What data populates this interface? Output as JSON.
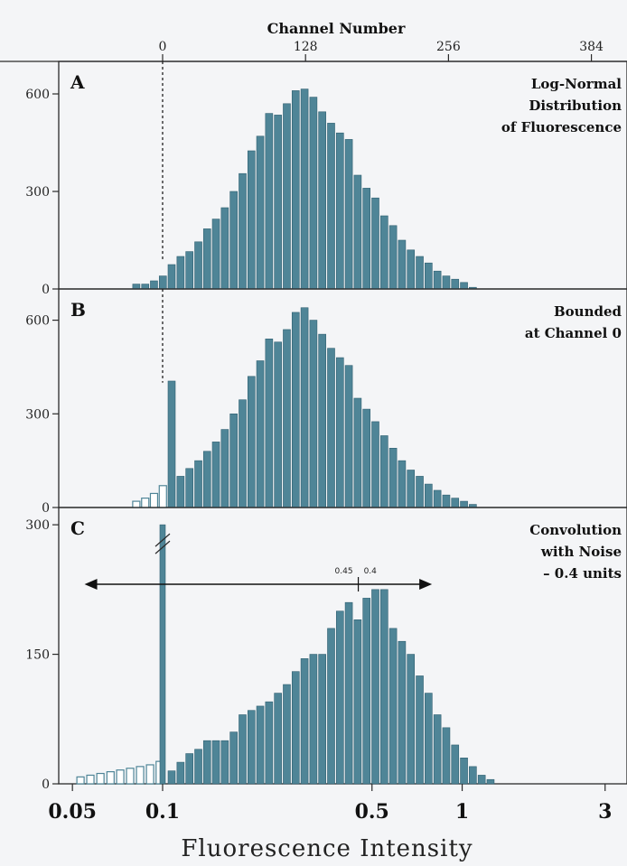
{
  "top_axis": {
    "title": "Channel Number",
    "ticks": [
      {
        "channel": 0,
        "x": 0.1
      },
      {
        "channel": 128,
        "x": 0.3
      },
      {
        "channel": 256,
        "x": 0.9
      },
      {
        "channel": 384,
        "x": 2.7
      }
    ]
  },
  "bottom_axis": {
    "title": "Fluorescence Intensity",
    "ticks": [
      {
        "value": 0.05,
        "label": "0.05"
      },
      {
        "value": 0.1,
        "label": "0.1"
      },
      {
        "value": 0.5,
        "label": "0.5"
      },
      {
        "value": 1,
        "label": "1"
      },
      {
        "value": 3,
        "label": "3"
      }
    ]
  },
  "colors": {
    "bar": "#4f8597",
    "bar_edge": "#2f5f70",
    "hollow_edge": "#4f8597"
  },
  "chart_data": [
    {
      "type": "bar",
      "panel": "A",
      "annotation": [
        "Log-Normal",
        "Distribution",
        "of Fluorescence"
      ],
      "xscale": "log",
      "ylim": [
        0,
        700
      ],
      "yticks": [
        0,
        300,
        600
      ],
      "hollow_bars": [],
      "x": [
        0.0817,
        0.0875,
        0.0936,
        0.1002,
        0.1072,
        0.1148,
        0.1229,
        0.1316,
        0.1408,
        0.1507,
        0.1613,
        0.1727,
        0.1849,
        0.1979,
        0.2118,
        0.2267,
        0.2427,
        0.2598,
        0.2781,
        0.2977,
        0.3187,
        0.3411,
        0.3652,
        0.3909,
        0.4184,
        0.4479,
        0.4795,
        0.5132,
        0.5494,
        0.5881,
        0.6295,
        0.6739,
        0.7214,
        0.7722,
        0.8266,
        0.8849,
        0.9472,
        1.014,
        1.0854
      ],
      "values": [
        15,
        15,
        25,
        40,
        75,
        100,
        115,
        145,
        185,
        215,
        250,
        300,
        355,
        425,
        470,
        540,
        535,
        570,
        610,
        615,
        590,
        545,
        510,
        480,
        460,
        350,
        310,
        280,
        225,
        195,
        150,
        120,
        100,
        80,
        55,
        40,
        30,
        20,
        5
      ]
    },
    {
      "type": "bar",
      "panel": "B",
      "annotation": [
        "Bounded",
        "at Channel 0"
      ],
      "xscale": "log",
      "ylim": [
        0,
        700
      ],
      "yticks": [
        0,
        300,
        600
      ],
      "hollow_bars": [
        {
          "x": 0.0817,
          "value": 20
        },
        {
          "x": 0.0875,
          "value": 30
        },
        {
          "x": 0.0936,
          "value": 45
        },
        {
          "x": 0.1002,
          "value": 70
        }
      ],
      "x": [
        0.1072,
        0.1148,
        0.1229,
        0.1316,
        0.1408,
        0.1507,
        0.1613,
        0.1727,
        0.1849,
        0.1979,
        0.2118,
        0.2267,
        0.2427,
        0.2598,
        0.2781,
        0.2977,
        0.3187,
        0.3411,
        0.3652,
        0.3909,
        0.4184,
        0.4479,
        0.4795,
        0.5132,
        0.5494,
        0.5881,
        0.6295,
        0.6739,
        0.7214,
        0.7722,
        0.8266,
        0.8849,
        0.9472,
        1.014,
        1.0854
      ],
      "values": [
        405,
        100,
        125,
        150,
        180,
        210,
        250,
        300,
        345,
        420,
        470,
        540,
        530,
        570,
        625,
        640,
        600,
        555,
        510,
        480,
        455,
        350,
        315,
        275,
        230,
        190,
        150,
        120,
        100,
        75,
        55,
        40,
        30,
        20,
        10
      ]
    },
    {
      "type": "bar",
      "panel": "C",
      "annotation": [
        "Convolution",
        "with Noise",
        "– 0.4 units"
      ],
      "xscale": "log",
      "ylim": [
        0,
        320
      ],
      "yticks": [
        0,
        150,
        300
      ],
      "hollow_bars": [
        {
          "x": 0.0532,
          "value": 8
        },
        {
          "x": 0.0574,
          "value": 10
        },
        {
          "x": 0.062,
          "value": 12
        },
        {
          "x": 0.067,
          "value": 14
        },
        {
          "x": 0.0722,
          "value": 16
        },
        {
          "x": 0.0779,
          "value": 18
        },
        {
          "x": 0.0841,
          "value": 20
        },
        {
          "x": 0.0908,
          "value": 22
        },
        {
          "x": 0.0978,
          "value": 26
        }
      ],
      "spike": {
        "x": 0.1,
        "value": 300
      },
      "range_arrow": {
        "labels": [
          "0.45",
          "0.4"
        ]
      },
      "x": [
        0.1072,
        0.1148,
        0.1229,
        0.1316,
        0.1408,
        0.1507,
        0.1613,
        0.1727,
        0.1849,
        0.1979,
        0.2118,
        0.2267,
        0.2427,
        0.2598,
        0.2781,
        0.2977,
        0.3187,
        0.3411,
        0.3652,
        0.3909,
        0.4184,
        0.4479,
        0.4795,
        0.5132,
        0.5494,
        0.5881,
        0.6295,
        0.6739,
        0.7214,
        0.7722,
        0.8266,
        0.8849,
        0.9472,
        1.014,
        1.0854,
        1.1619,
        1.2437
      ],
      "values": [
        15,
        25,
        35,
        40,
        50,
        50,
        50,
        60,
        80,
        85,
        90,
        95,
        105,
        115,
        130,
        145,
        150,
        150,
        180,
        200,
        210,
        190,
        215,
        225,
        225,
        180,
        165,
        150,
        125,
        105,
        80,
        65,
        45,
        30,
        20,
        10,
        5
      ]
    }
  ]
}
